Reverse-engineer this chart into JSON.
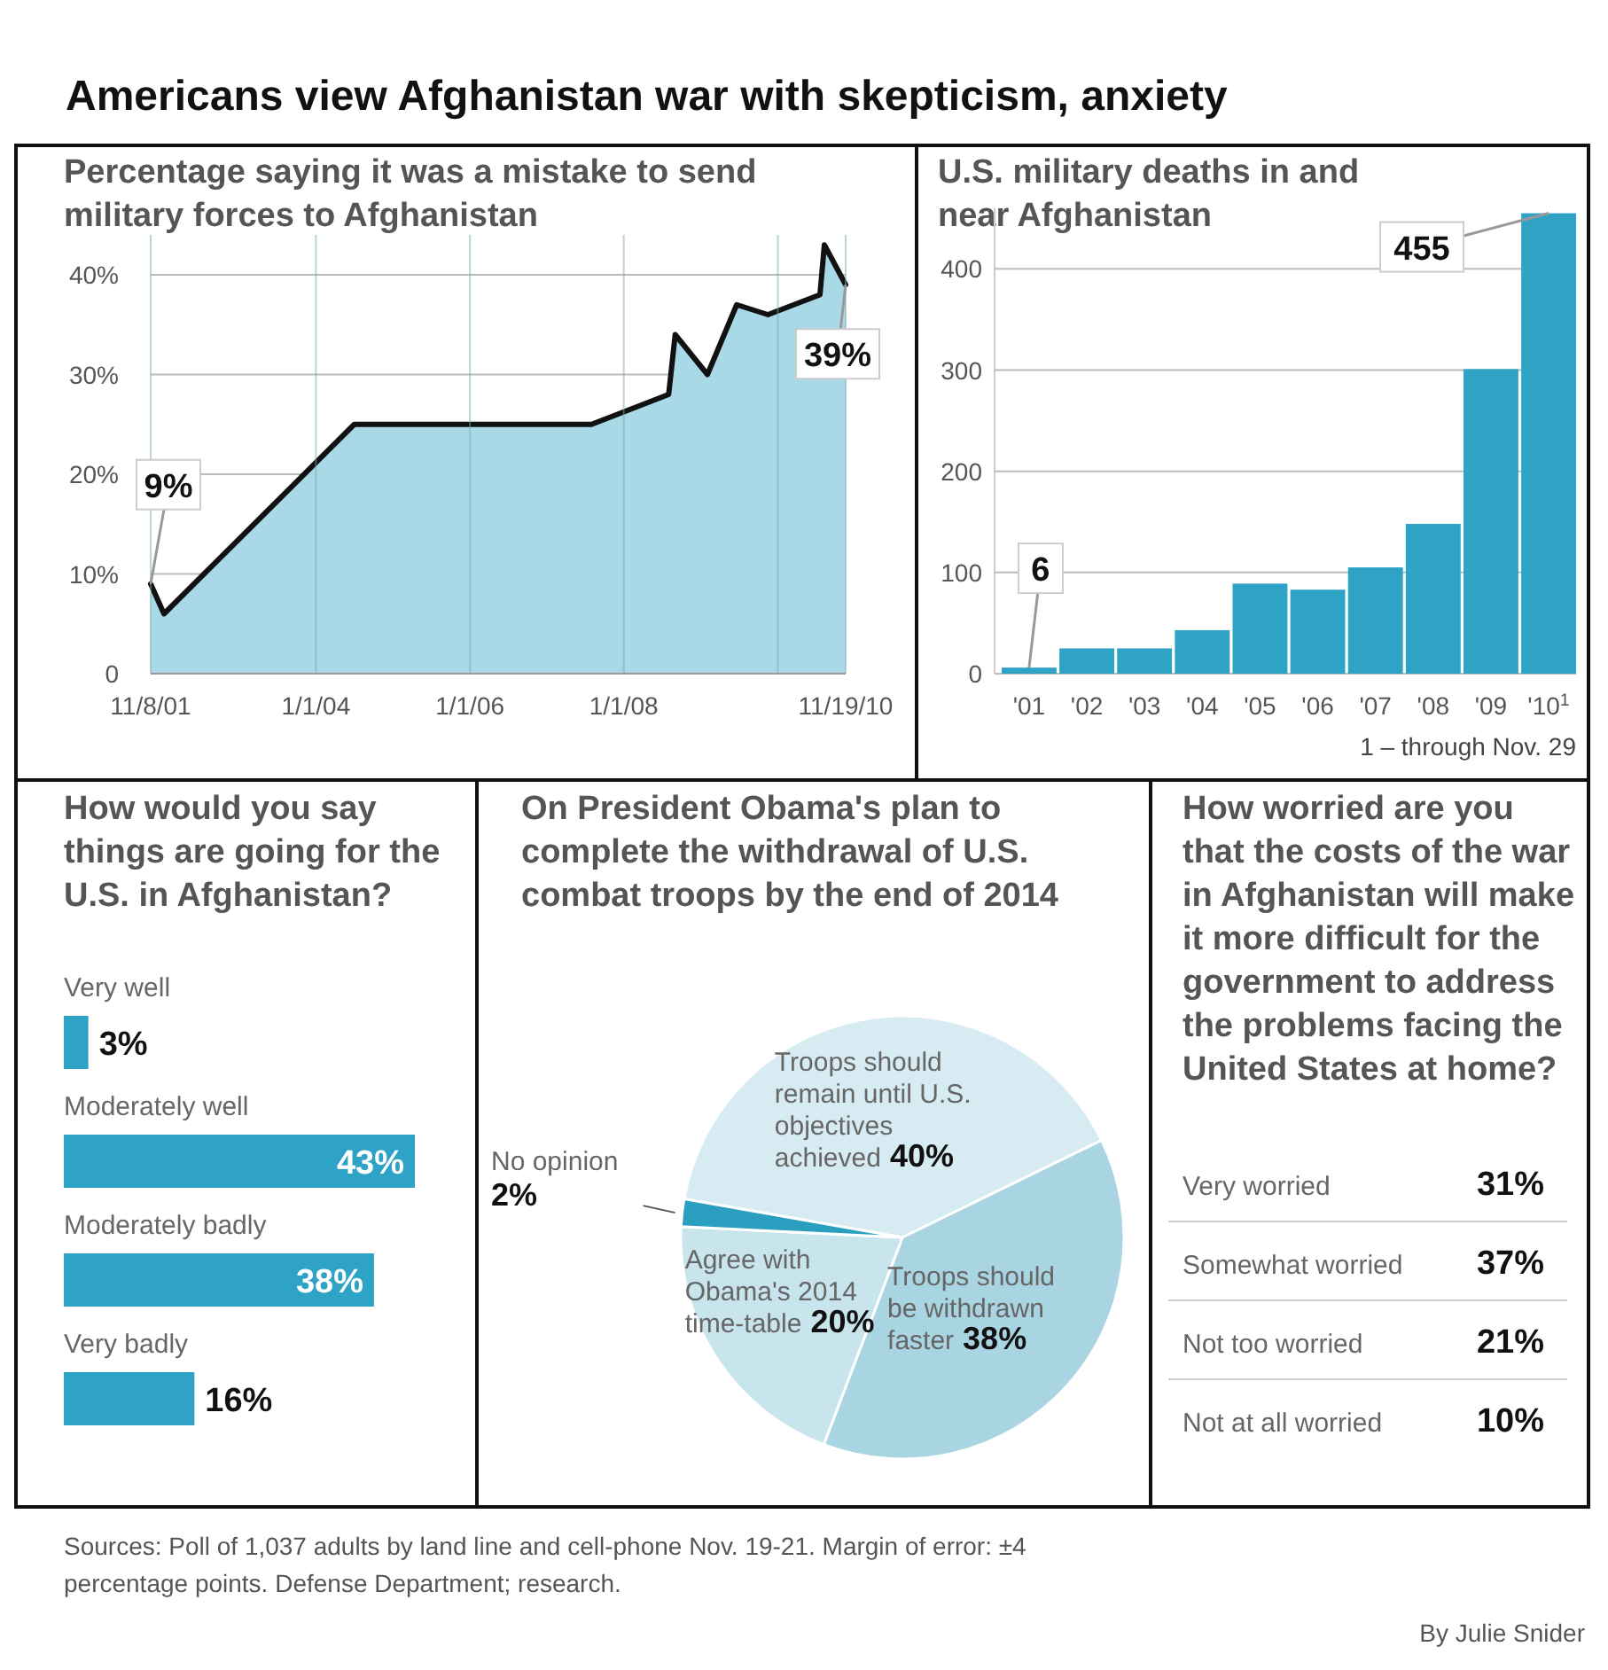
{
  "chart_data": [
    {
      "type": "area",
      "title": "Americans view Afghanistan war with skepticism, anxiety",
      "subtitle": "Percentage saying it was a mistake to send military forces to Afghanistan",
      "x": [
        "2001-11-08",
        "2002-01-10",
        "2004-07-01",
        "2007-08-01",
        "2008-08-01",
        "2008-09-01",
        "2009-02-01",
        "2009-06-20",
        "2009-11-15",
        "2010-07-20",
        "2010-08-10",
        "2010-11-19"
      ],
      "series": [
        {
          "color": "#a9d9e6",
          "values": [
            9,
            6,
            25,
            25,
            28,
            34,
            30,
            37,
            36,
            38,
            43,
            39
          ]
        }
      ],
      "xlim": [
        "2001-11-08",
        "2010-11-19"
      ],
      "xticks": [
        {
          "value": "2001-11-08",
          "label": "11/8/01"
        },
        {
          "value": "2004-01-01",
          "label": "1/1/04"
        },
        {
          "value": "2006-01-01",
          "label": "1/1/06"
        },
        {
          "value": "2008-01-01",
          "label": "1/1/08"
        },
        {
          "value": "2010-01-01",
          "label": null
        },
        {
          "value": "2010-11-19",
          "label": "11/19/10"
        }
      ],
      "ylim": [
        0,
        44
      ],
      "yticks": [
        0,
        {
          "value": 10,
          "label": "10%"
        },
        {
          "value": 20,
          "label": "20%"
        },
        {
          "value": 30,
          "label": "30%"
        },
        {
          "value": 40,
          "label": "40%"
        }
      ],
      "grid": true,
      "annotations": [
        {
          "text": "9%",
          "x": "2001-11-08",
          "y": 9
        },
        {
          "text": "39%",
          "x": "2010-11-19",
          "y": 39
        }
      ]
    },
    {
      "type": "bar",
      "title": "U.S. military deaths in and near Afghanistan",
      "categories": [
        "'01",
        "'02",
        "'03",
        "'04",
        "'05",
        "'06",
        "'07",
        "'08",
        "'09",
        "'10$^{1}$"
      ],
      "values": [
        6,
        25,
        25,
        43,
        89,
        83,
        105,
        148,
        301,
        455
      ],
      "color": "#2ea3c6",
      "ylim": [
        0,
        460
      ],
      "yticks": [
        0,
        100,
        200,
        300,
        400
      ],
      "grid": "y",
      "value_labels": [
        "6",
        null,
        null,
        null,
        null,
        null,
        null,
        null,
        null,
        "455"
      ],
      "annotations": [
        "1 – through Nov. 29"
      ]
    },
    {
      "type": "bar",
      "orientation": "horizontal",
      "title": "How would you say things are going for the U.S. in Afghanistan?",
      "categories": [
        "Very well",
        "Moderately well",
        "Moderately badly",
        "Very badly"
      ],
      "values": [
        3,
        43,
        38,
        16
      ],
      "color": "#2ea3c6",
      "value_labels": [
        "3%",
        "43%",
        "38%",
        "16%"
      ]
    },
    {
      "type": "pie",
      "title": "On President Obama's plan to complete the withdrawal of U.S. combat troops by the end of 2014",
      "categories": [
        "Troops should remain until U.S. objectives achieved",
        "Troops should be withdrawn faster",
        "Agree with Obama's 2014 time-table",
        "No opinion"
      ],
      "values": [
        40,
        38,
        20,
        2
      ],
      "colors": [
        "#d7ecf2",
        "#a9d5e2",
        "#c8e5ed",
        "#2a9fc0"
      ],
      "value_labels": [
        "40%",
        "38%",
        "20%",
        "2%"
      ]
    },
    {
      "type": "other",
      "title": "How worried are you that the costs of the war in Afghanistan will make it more difficult for the government to address the problems facing the United States at home?",
      "categories": [
        "Very worried",
        "Somewhat worried",
        "Not too worried",
        "Not at all worried"
      ],
      "values": [
        31,
        37,
        21,
        10
      ],
      "value_labels": [
        "31%",
        "37%",
        "21%",
        "10%"
      ],
      "annotations": [
        "Sources: Poll of 1,037 adults by land line and cell-phone Nov. 19-21. Margin of error: ±4 percentage points. Defense Department; research.",
        "By Julie Snider"
      ]
    }
  ]
}
